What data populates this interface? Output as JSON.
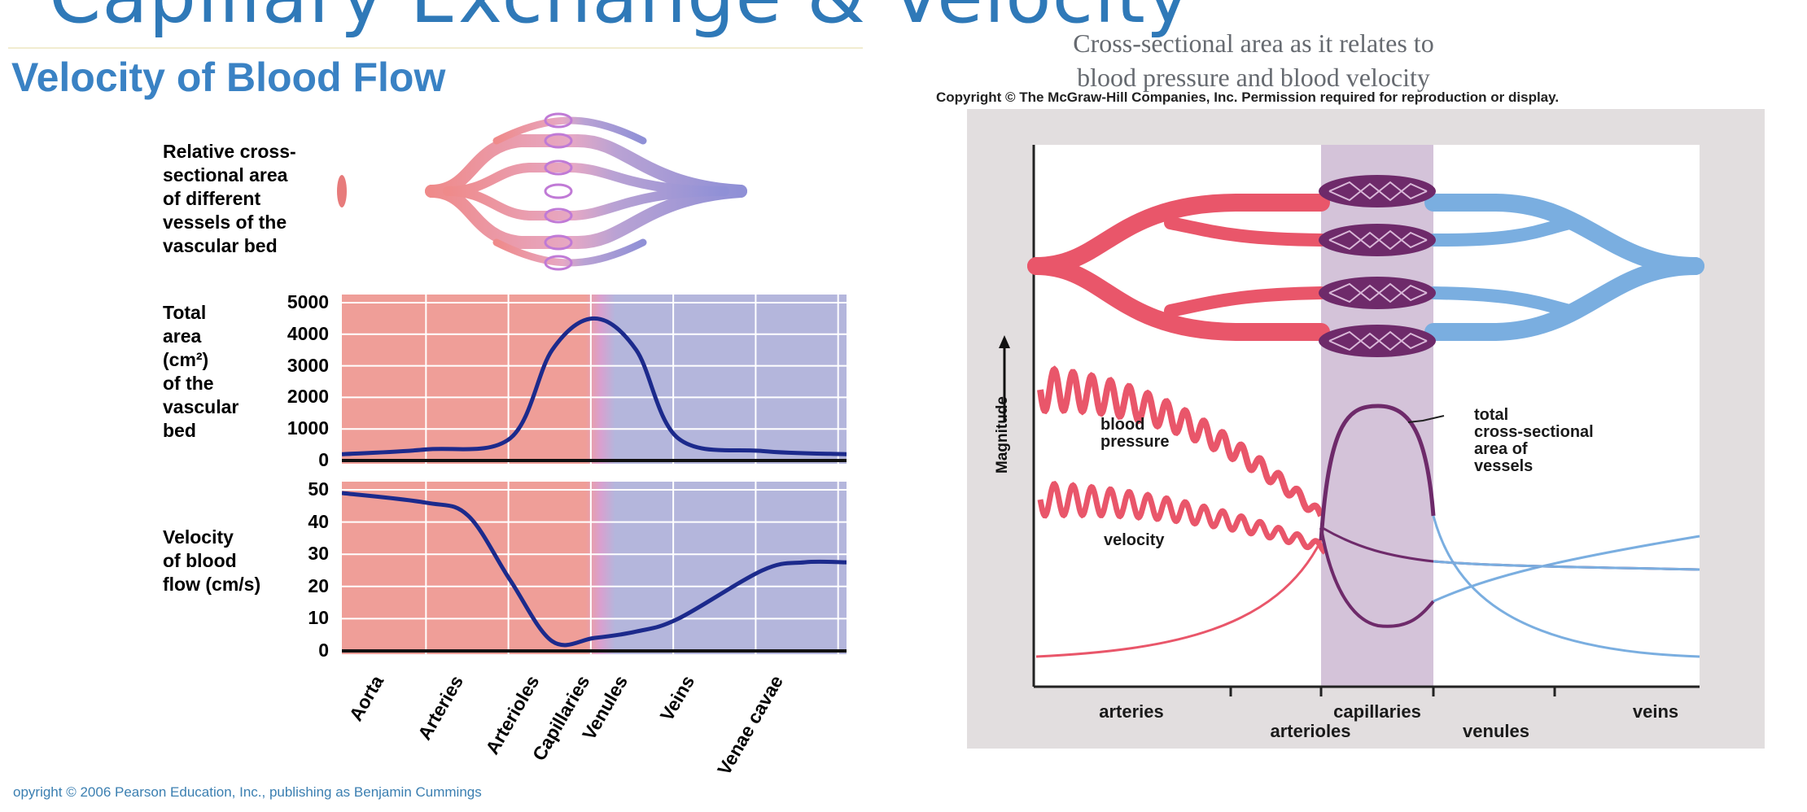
{
  "slide_title_fragment": "Capillary Exchange & Velocity",
  "left_panel": {
    "title": "Velocity of Blood Flow",
    "vessel_label": "Relative cross-sectional area of different vessels of the vascular bed",
    "vessel_label_lines": [
      "Relative cross-",
      "sectional area",
      "of different",
      "vessels of the",
      "vascular bed"
    ],
    "area_label_lines": [
      "Total",
      "area",
      "(cm²)",
      "of the",
      "vascular",
      "bed"
    ],
    "velocity_label_lines": [
      "Velocity",
      "of blood",
      "flow (cm/s)"
    ],
    "copyright": "opyright © 2006 Pearson Education, Inc., publishing as Benjamin Cummings",
    "colors": {
      "arterial": "#ef9e98",
      "venous": "#b4b6dc",
      "curve": "#1c2a8c"
    }
  },
  "right_panel": {
    "caption_lines": [
      "Cross-sectional area as it relates to",
      "blood pressure and blood velocity"
    ],
    "copyright": "Copyright © The McGraw-Hill Companies, Inc. Permission required for reproduction or display.",
    "y_axis_label": "Magnitude",
    "labels": {
      "blood_pressure": [
        "blood",
        "pressure"
      ],
      "velocity": "velocity",
      "total_area": [
        "total",
        "cross-sectional",
        "area of",
        "vessels"
      ]
    },
    "categories_top": [
      "arteries",
      "capillaries",
      "veins"
    ],
    "categories_bottom": [
      "arterioles",
      "venules"
    ],
    "colors": {
      "arterial": "#e9566a",
      "capillary": "#6e2a6a",
      "venous": "#7aaee0",
      "band": "#cfbfd6",
      "panel": "#e2dedf"
    }
  },
  "chart_data": [
    {
      "type": "area",
      "title": "Total area (cm²) of the vascular bed",
      "categories": [
        "Aorta",
        "Arteries",
        "Arterioles",
        "Capillaries",
        "Venules",
        "Veins",
        "Venae cavae"
      ],
      "yticks": [
        0,
        1000,
        2000,
        3000,
        4000,
        5000
      ],
      "ylim": [
        0,
        5000
      ],
      "series": [
        {
          "x": [
            0,
            1,
            2,
            2.5,
            3,
            3.5,
            4,
            5,
            6
          ],
          "values": [
            200,
            350,
            700,
            3500,
            4500,
            3500,
            700,
            300,
            200
          ]
        }
      ]
    },
    {
      "type": "line",
      "title": "Velocity of blood flow (cm/s)",
      "categories": [
        "Aorta",
        "Arteries",
        "Arterioles",
        "Capillaries",
        "Venules",
        "Veins",
        "Venae cavae"
      ],
      "yticks": [
        0,
        10,
        20,
        30,
        40,
        50
      ],
      "ylim": [
        0,
        50
      ],
      "series": [
        {
          "x": [
            0,
            1,
            1.5,
            2,
            2.5,
            3,
            3.5,
            4,
            5,
            5.5,
            6
          ],
          "values": [
            49,
            46,
            42,
            22,
            3,
            4,
            6,
            10,
            25,
            27.5,
            27.5
          ]
        }
      ]
    }
  ]
}
